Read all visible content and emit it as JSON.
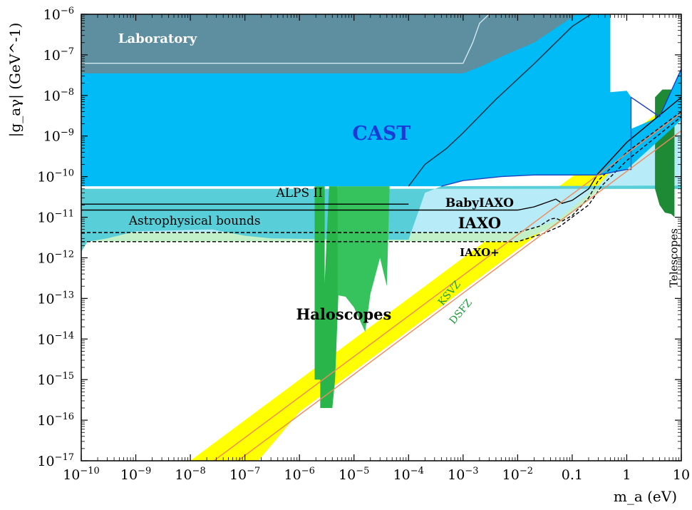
{
  "chart_data": {
    "type": "area",
    "title": "",
    "xlabel": "m_a (eV)",
    "ylabel": "|g_aγ| (GeV^-1)",
    "x_scale": "log",
    "y_scale": "log",
    "xlim": [
      1e-10,
      10
    ],
    "ylim": [
      1e-17,
      1e-06
    ],
    "grid": false,
    "x_ticks": [
      {
        "value": 1e-10,
        "base": "10",
        "exp": "−10"
      },
      {
        "value": 1e-09,
        "base": "10",
        "exp": "−9"
      },
      {
        "value": 1e-08,
        "base": "10",
        "exp": "−8"
      },
      {
        "value": 1e-07,
        "base": "10",
        "exp": "−7"
      },
      {
        "value": 1e-06,
        "base": "10",
        "exp": "−6"
      },
      {
        "value": 1e-05,
        "base": "10",
        "exp": "−5"
      },
      {
        "value": 0.0001,
        "base": "10",
        "exp": "−4"
      },
      {
        "value": 0.001,
        "base": "10",
        "exp": "−3"
      },
      {
        "value": 0.01,
        "base": "10",
        "exp": "−2"
      },
      {
        "value": 0.1,
        "base": "0.1",
        "exp": ""
      },
      {
        "value": 1,
        "base": "1",
        "exp": ""
      },
      {
        "value": 10,
        "base": "10",
        "exp": ""
      }
    ],
    "y_ticks": [
      {
        "value": 1e-06,
        "base": "10",
        "exp": "−6"
      },
      {
        "value": 1e-07,
        "base": "10",
        "exp": "−7"
      },
      {
        "value": 1e-08,
        "base": "10",
        "exp": "−8"
      },
      {
        "value": 1e-09,
        "base": "10",
        "exp": "−9"
      },
      {
        "value": 1e-10,
        "base": "10",
        "exp": "−10"
      },
      {
        "value": 1e-11,
        "base": "10",
        "exp": "−11"
      },
      {
        "value": 1e-12,
        "base": "10",
        "exp": "−12"
      },
      {
        "value": 1e-13,
        "base": "10",
        "exp": "−13"
      },
      {
        "value": 1e-14,
        "base": "10",
        "exp": "−14"
      },
      {
        "value": 1e-15,
        "base": "10",
        "exp": "−15"
      },
      {
        "value": 1e-16,
        "base": "10",
        "exp": "−16"
      },
      {
        "value": 1e-17,
        "base": "10",
        "exp": "−17"
      }
    ],
    "regions": [
      {
        "name": "KSVZ/DSFZ band",
        "color": "#ffff00",
        "points": [
          [
            4.4e-09,
            1e-17
          ],
          [
            1e-08,
            1e-17
          ],
          [
            1e-07,
            1e-16
          ],
          [
            1e-06,
            1e-15
          ],
          [
            1e-05,
            1e-14
          ],
          [
            0.0001,
            1e-13
          ],
          [
            0.001,
            1e-12
          ],
          [
            0.01,
            1e-11
          ],
          [
            0.1,
            1e-10
          ],
          [
            1,
            1e-09
          ],
          [
            10,
            1e-08
          ],
          [
            10,
            1.6e-09
          ],
          [
            1,
            1.6e-10
          ],
          [
            0.1,
            1.6e-11
          ],
          [
            0.01,
            1.6e-12
          ],
          [
            0.001,
            1.6e-13
          ],
          [
            0.0001,
            1.6e-14
          ],
          [
            1e-05,
            1.6e-15
          ],
          [
            1e-06,
            1.6e-16
          ],
          [
            1.75e-07,
            1e-17
          ]
        ]
      },
      {
        "name": "IAXO+ sensitivity",
        "color": "#c2f0c8",
        "points": [
          [
            1e-10,
            2.5e-12
          ],
          [
            0.01,
            2.5e-12
          ],
          [
            0.05,
            6e-12
          ],
          [
            0.3,
            4.5e-11
          ],
          [
            1,
            3e-10
          ],
          [
            10,
            3e-09
          ],
          [
            10,
            5e-11
          ],
          [
            1e-10,
            5e-11
          ]
        ]
      },
      {
        "name": "IAXO sensitivity",
        "color": "#b6ebf7",
        "points": [
          [
            1e-10,
            4.2e-12
          ],
          [
            0.01,
            4.2e-12
          ],
          [
            0.05,
            8e-12
          ],
          [
            0.3,
            6e-11
          ],
          [
            1,
            4e-10
          ],
          [
            10,
            4e-09
          ],
          [
            10,
            5e-11
          ],
          [
            1e-10,
            5e-11
          ]
        ]
      },
      {
        "name": "Astrophysical bounds",
        "color": "#58ced8",
        "points": [
          [
            1e-10,
            1.4e-12
          ],
          [
            1.3e-10,
            2.5e-12
          ],
          [
            3e-10,
            3e-12
          ],
          [
            1e-09,
            4.5e-12
          ],
          [
            2.5e-08,
            5e-12
          ],
          [
            1e-07,
            3.5e-12
          ],
          [
            3e-07,
            3e-12
          ],
          [
            1e-05,
            2.8e-12
          ],
          [
            0.0001,
            2.8e-12
          ],
          [
            0.0002,
            4e-11
          ],
          [
            0.0004,
            5.8e-11
          ],
          [
            2,
            6e-11
          ],
          [
            10,
            6e-11
          ],
          [
            10,
            5e-11
          ],
          [
            1e-10,
            5e-11
          ]
        ]
      },
      {
        "name": "Haloscopes ADMX band",
        "color": "#2ab54a",
        "points": [
          [
            1.9e-06,
            1e-15
          ],
          [
            1.9e-06,
            5.8e-11
          ],
          [
            2.9e-06,
            5.8e-11
          ],
          [
            2.9e-06,
            2e-13
          ],
          [
            2.7e-06,
            1e-15
          ]
        ]
      },
      {
        "name": "Haloscopes HAYSTAC band",
        "color": "#2ab54a",
        "points": [
          [
            2.4e-06,
            2e-16
          ],
          [
            2.4e-06,
            1e-15
          ],
          [
            3.5e-06,
            5.8e-11
          ],
          [
            5e-06,
            5.8e-11
          ],
          [
            5.2e-06,
            1.5e-13
          ],
          [
            4.5e-06,
            1e-15
          ],
          [
            4e-06,
            2e-16
          ]
        ]
      },
      {
        "name": "Haloscopes high-mass",
        "color": "#36c25c",
        "points": [
          [
            5e-06,
            5.8e-11
          ],
          [
            5e-06,
            1.2e-13
          ],
          [
            7e-06,
            1.1e-13
          ],
          [
            1e-05,
            6e-14
          ],
          [
            1.6e-05,
            1.5e-14
          ],
          [
            2e-05,
            1.3e-13
          ],
          [
            2.5e-05,
            4e-13
          ],
          [
            3e-05,
            1e-12
          ],
          [
            4e-05,
            2e-13
          ],
          [
            4.5e-05,
            5.8e-11
          ]
        ]
      },
      {
        "name": "Telescopes",
        "color": "#1e8a36",
        "points": [
          [
            3.3,
            5e-11
          ],
          [
            3.3,
            9e-09
          ],
          [
            4.5,
            1.4e-08
          ],
          [
            7.5,
            1.4e-08
          ],
          [
            7.5,
            1e-11
          ],
          [
            6.5,
            1.2e-11
          ],
          [
            5,
            1.3e-11
          ],
          [
            4,
            2e-11
          ]
        ]
      },
      {
        "name": "CAST",
        "color": "#00bbf5",
        "points": [
          [
            1e-10,
            5.8e-11
          ],
          [
            1e-10,
            1e-06
          ],
          [
            0.5,
            1e-06
          ],
          [
            0.5,
            1.2e-08
          ],
          [
            1,
            1.3e-08
          ],
          [
            1.2,
            9e-09
          ],
          [
            1.2,
            1.5e-09
          ],
          [
            4,
            3e-09
          ],
          [
            10,
            4.5e-08
          ],
          [
            10,
            2.5e-09
          ],
          [
            1,
            1.5e-10
          ],
          [
            0.3,
            1.1e-10
          ],
          [
            0.02,
            1.1e-10
          ],
          [
            0.005,
            1e-10
          ],
          [
            0.001,
            8e-11
          ],
          [
            0.0004,
            5.8e-11
          ]
        ]
      },
      {
        "name": "Laboratory",
        "color": "#5e8fa0",
        "points": [
          [
            1e-10,
            3.5e-08
          ],
          [
            1e-10,
            1e-06
          ],
          [
            0.12,
            1e-06
          ],
          [
            0.02,
            2e-07
          ],
          [
            0.006,
            1e-07
          ],
          [
            0.002,
            5e-08
          ],
          [
            0.001,
            3.5e-08
          ]
        ]
      }
    ],
    "curves": [
      {
        "name": "BabyIAXO",
        "color": "#000000",
        "dash": "solid",
        "points": [
          [
            1e-10,
            1.5e-11
          ],
          [
            0.01,
            1.5e-11
          ],
          [
            0.02,
            1.8e-11
          ],
          [
            0.04,
            2.5e-11
          ],
          [
            0.05,
            2.8e-11
          ],
          [
            0.065,
            2.2e-11
          ],
          [
            0.1,
            2.6e-11
          ],
          [
            0.2,
            5e-11
          ],
          [
            0.3,
            1.2e-10
          ],
          [
            1,
            7e-10
          ],
          [
            10,
            9e-09
          ]
        ]
      },
      {
        "name": "IAXO",
        "color": "#000000",
        "dash": "dashed",
        "points": [
          [
            1e-10,
            4.2e-12
          ],
          [
            0.01,
            4.2e-12
          ],
          [
            0.025,
            6e-12
          ],
          [
            0.04,
            9e-12
          ],
          [
            0.05,
            9.5e-12
          ],
          [
            0.065,
            8e-12
          ],
          [
            0.1,
            1.1e-11
          ],
          [
            0.2,
            3e-11
          ],
          [
            0.3,
            8e-11
          ],
          [
            1,
            4e-10
          ],
          [
            10,
            4e-09
          ]
        ]
      },
      {
        "name": "IAXO+",
        "color": "#000000",
        "dash": "dashed",
        "points": [
          [
            1e-10,
            2.5e-12
          ],
          [
            0.01,
            2.5e-12
          ],
          [
            0.03,
            4e-12
          ],
          [
            0.06,
            6e-12
          ],
          [
            0.1,
            1e-11
          ],
          [
            0.2,
            2e-11
          ],
          [
            0.35,
            6e-11
          ],
          [
            1,
            2.5e-10
          ],
          [
            10,
            3e-09
          ]
        ]
      },
      {
        "name": "ALPS II",
        "color": "#000000",
        "dash": "solid",
        "points": [
          [
            1e-10,
            2.1e-11
          ],
          [
            0.0001,
            2.1e-11
          ]
        ]
      },
      {
        "name": "CAST thin line",
        "color": "#0a2b3c",
        "dash": "solid",
        "points": [
          [
            0.0001,
            5.8e-11
          ],
          [
            0.0002,
            2e-10
          ],
          [
            0.0005,
            5e-10
          ],
          [
            0.001,
            1.2e-09
          ],
          [
            0.004,
            8e-09
          ],
          [
            0.02,
            6e-08
          ],
          [
            0.1,
            5e-07
          ],
          [
            0.22,
            1e-06
          ]
        ]
      },
      {
        "name": "CAST edge",
        "color": "#1e40c0",
        "dash": "solid",
        "points": [
          [
            0.0004,
            5.8e-11
          ],
          [
            0.001,
            8e-11
          ],
          [
            0.005,
            1e-10
          ],
          [
            0.02,
            1.1e-10
          ],
          [
            0.3,
            1.1e-10
          ],
          [
            1,
            1.5e-10
          ],
          [
            1.2,
            1.5e-10
          ],
          [
            1.2,
            9e-09
          ],
          [
            4,
            3e-09
          ],
          [
            10,
            4.5e-08
          ]
        ]
      },
      {
        "name": "Laboratory edge",
        "color": "#d0e8f0",
        "dash": "solid",
        "points": [
          [
            1e-10,
            6.2e-08
          ],
          [
            0.001,
            6.2e-08
          ],
          [
            0.0015,
            2e-07
          ],
          [
            0.002,
            6e-07
          ],
          [
            0.003,
            1e-06
          ]
        ]
      },
      {
        "name": "KSVZ",
        "color": "#f08a5c",
        "dash": "solid",
        "points": [
          [
            2.7e-08,
            1e-17
          ],
          [
            10,
            3.7e-09
          ]
        ]
      },
      {
        "name": "DSFZ",
        "color": "#f08a5c",
        "dash": "solid",
        "points": [
          [
            7.4e-08,
            1e-17
          ],
          [
            10,
            1.35e-09
          ]
        ]
      }
    ],
    "annotations": [
      {
        "text": "Laboratory",
        "x": 2.5e-09,
        "y": 2e-07,
        "color": "#ffffff",
        "size": 18,
        "weight": "bold",
        "rotate": 0
      },
      {
        "text": "CAST",
        "x": 3.2e-05,
        "y": 8e-10,
        "color": "#1a3bd6",
        "size": 27,
        "weight": "bold",
        "rotate": 0
      },
      {
        "text": "ALPS II",
        "x": 1e-06,
        "y": 3.2e-11,
        "color": "#000000",
        "size": 17,
        "weight": "normal",
        "rotate": 0
      },
      {
        "text": "BabyIAXO",
        "x": 0.002,
        "y": 1.8e-11,
        "color": "#000000",
        "size": 17,
        "weight": "bold",
        "rotate": 0
      },
      {
        "text": "Astrophysical bounds",
        "x": 1.2e-08,
        "y": 6.5e-12,
        "color": "#000000",
        "size": 17,
        "weight": "normal",
        "rotate": 0
      },
      {
        "text": "IAXO",
        "x": 0.002,
        "y": 5.3e-12,
        "color": "#000000",
        "size": 21,
        "weight": "bold",
        "rotate": 0
      },
      {
        "text": "IAXO+",
        "x": 0.002,
        "y": 1.1e-12,
        "color": "#000000",
        "size": 15,
        "weight": "bold",
        "rotate": 0
      },
      {
        "text": "Haloscopes",
        "x": 6.5e-06,
        "y": 3e-14,
        "color": "#000000",
        "size": 21,
        "weight": "bold",
        "rotate": 0
      },
      {
        "text": "KSVZ",
        "x": 0.00062,
        "y": 1.2e-13,
        "color": "#1f9a3a",
        "size": 14,
        "weight": "normal",
        "rotate": -50
      },
      {
        "text": "DSFZ",
        "x": 0.001,
        "y": 4.2e-14,
        "color": "#1f9a3a",
        "size": 14,
        "weight": "normal",
        "rotate": -50
      },
      {
        "text": "Telescopes",
        "x": 8.5,
        "y": 1e-12,
        "color": "#000000",
        "size": 15,
        "weight": "normal",
        "rotate": -90
      }
    ]
  }
}
